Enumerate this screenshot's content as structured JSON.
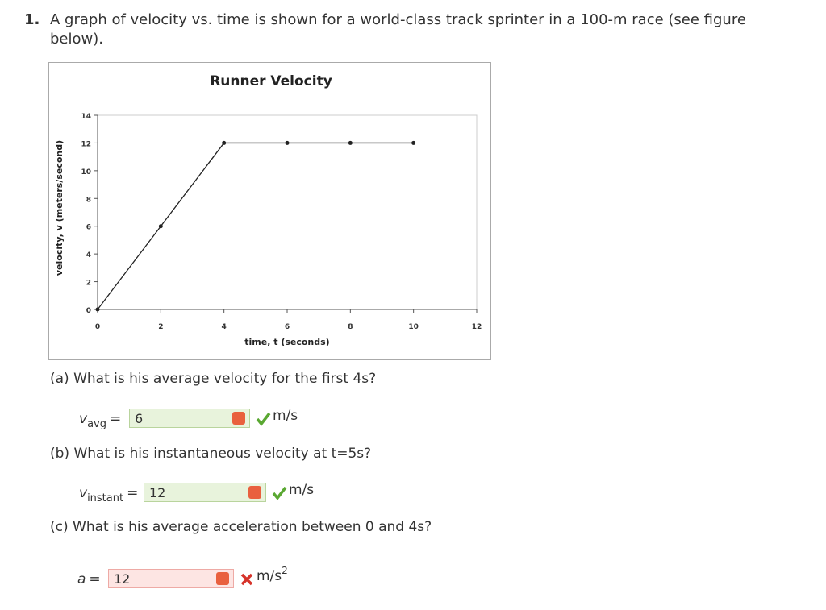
{
  "question": {
    "number": "1.",
    "text": "A graph of velocity vs. time is shown for a world-class track sprinter in a 100-m race (see figure below)."
  },
  "chart_data": {
    "type": "line",
    "title": "Runner Velocity",
    "x_label": "time, t (seconds)",
    "y_label": "velocity, v (meters/second)",
    "x": [
      0,
      2,
      4,
      6,
      8,
      10
    ],
    "series": [
      {
        "color": "#222222",
        "values": [
          0,
          6,
          12,
          12,
          12,
          12
        ]
      }
    ],
    "xlim": [
      0,
      12
    ],
    "xticks": [
      0,
      2,
      4,
      6,
      8,
      10,
      12
    ],
    "ylim": [
      0,
      14
    ],
    "yticks": [
      0,
      2,
      4,
      6,
      8,
      10,
      12,
      14
    ]
  },
  "parts": [
    {
      "prompt": "(a) What is his average velocity for the first 4s?",
      "variable": "v",
      "subscript": "avg",
      "equals": "=",
      "answer": "6",
      "unit": "m/s",
      "status": "correct"
    },
    {
      "prompt": "(b) What is his instantaneous velocity at t=5s?",
      "variable": "v",
      "subscript": "instant",
      "equals": "=",
      "answer": "12",
      "unit": "m/s",
      "status": "correct"
    },
    {
      "prompt": "(c) What is his average acceleration between 0 and 4s?",
      "variable": "a",
      "equals": "=",
      "answer": "12",
      "unit": "m/s",
      "unit_sup": "2",
      "status": "incorrect"
    }
  ]
}
